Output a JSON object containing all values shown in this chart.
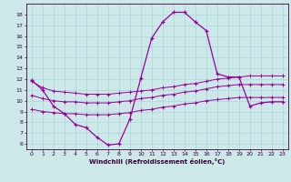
{
  "xlabel": "Windchill (Refroidissement éolien,°C)",
  "x": [
    0,
    1,
    2,
    3,
    4,
    5,
    6,
    7,
    8,
    9,
    10,
    11,
    12,
    13,
    14,
    15,
    16,
    17,
    18,
    19,
    20,
    21,
    22,
    23
  ],
  "line1": [
    11.9,
    11.0,
    9.5,
    8.8,
    7.8,
    7.5,
    6.6,
    5.9,
    6.0,
    8.3,
    12.1,
    15.8,
    17.3,
    18.2,
    18.2,
    17.3,
    16.5,
    12.5,
    12.2,
    12.2,
    9.5,
    9.8,
    9.9,
    9.9
  ],
  "line2": [
    11.8,
    11.2,
    10.9,
    10.8,
    10.7,
    10.6,
    10.6,
    10.6,
    10.7,
    10.8,
    10.9,
    11.0,
    11.2,
    11.3,
    11.5,
    11.6,
    11.8,
    12.0,
    12.1,
    12.2,
    12.3,
    12.3,
    12.3,
    12.3
  ],
  "line3": [
    10.5,
    10.2,
    10.0,
    9.9,
    9.9,
    9.8,
    9.8,
    9.8,
    9.9,
    10.0,
    10.2,
    10.3,
    10.5,
    10.6,
    10.8,
    10.9,
    11.1,
    11.3,
    11.4,
    11.5,
    11.5,
    11.5,
    11.5,
    11.5
  ],
  "line4": [
    9.2,
    9.0,
    8.9,
    8.8,
    8.8,
    8.7,
    8.7,
    8.7,
    8.8,
    8.9,
    9.1,
    9.2,
    9.4,
    9.5,
    9.7,
    9.8,
    10.0,
    10.1,
    10.2,
    10.3,
    10.3,
    10.3,
    10.3,
    10.3
  ],
  "color": "#990099",
  "bg_color": "#cce8e8",
  "grid_color": "#aad8d8",
  "ylim": [
    5.5,
    19.0
  ],
  "xlim": [
    -0.5,
    23.5
  ],
  "yticks": [
    6,
    7,
    8,
    9,
    10,
    11,
    12,
    13,
    14,
    15,
    16,
    17,
    18
  ],
  "xticks": [
    0,
    1,
    2,
    3,
    4,
    5,
    6,
    7,
    8,
    9,
    10,
    11,
    12,
    13,
    14,
    15,
    16,
    17,
    18,
    19,
    20,
    21,
    22,
    23
  ]
}
